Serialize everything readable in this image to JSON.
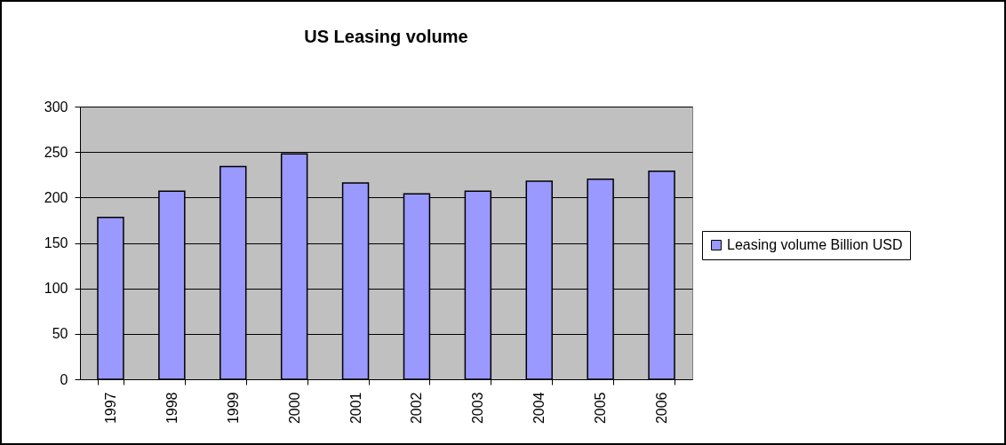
{
  "chart_data": {
    "type": "bar",
    "title": "US Leasing volume",
    "categories": [
      "1997",
      "1998",
      "1999",
      "2000",
      "2001",
      "2002",
      "2003",
      "2004",
      "2005",
      "2006"
    ],
    "series": [
      {
        "name": "Leasing volume Billion USD",
        "color": "#9999ff",
        "values": [
          178,
          207,
          234,
          248,
          216,
          204,
          207,
          218,
          220,
          229
        ]
      }
    ],
    "ylim": [
      0,
      300
    ],
    "yticks": [
      0,
      50,
      100,
      150,
      200,
      250,
      300
    ],
    "grid": "y",
    "legend": "right"
  }
}
